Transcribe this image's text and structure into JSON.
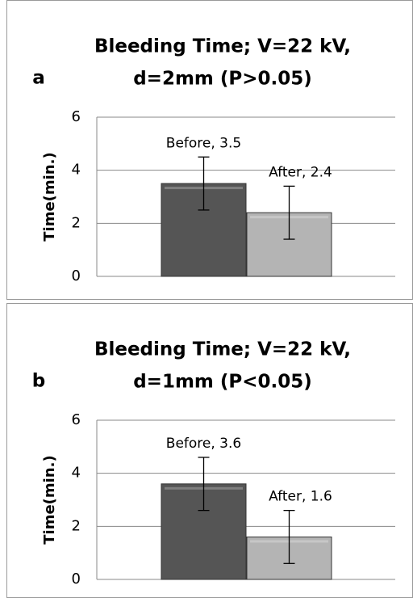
{
  "chart_data": [
    {
      "type": "bar",
      "panel_label": "a",
      "title": [
        "Bleeding Time; V=22 kV,",
        "d=2mm (P>0.05)"
      ],
      "ylabel": "Time(min.)",
      "values": [
        3.5,
        2.4
      ],
      "errors": [
        1,
        1
      ],
      "value_labels": [
        "Before, 3.5",
        "After, 2.4"
      ],
      "colors": [
        "#555555",
        "#b4b4b4"
      ],
      "ylim": [
        0,
        6
      ],
      "yticks": [
        0,
        2,
        4,
        6
      ],
      "grid": true
    },
    {
      "type": "bar",
      "panel_label": "b",
      "title": [
        "Bleeding Time; V=22 kV,",
        "d=1mm (P<0.05)"
      ],
      "ylabel": "Time(min.)",
      "values": [
        3.6,
        1.6
      ],
      "errors": [
        1,
        1
      ],
      "value_labels": [
        "Before, 3.6",
        "After, 1.6"
      ],
      "colors": [
        "#555555",
        "#b4b4b4"
      ],
      "ylim": [
        0,
        6
      ],
      "yticks": [
        0,
        2,
        4,
        6
      ],
      "grid": true
    }
  ]
}
